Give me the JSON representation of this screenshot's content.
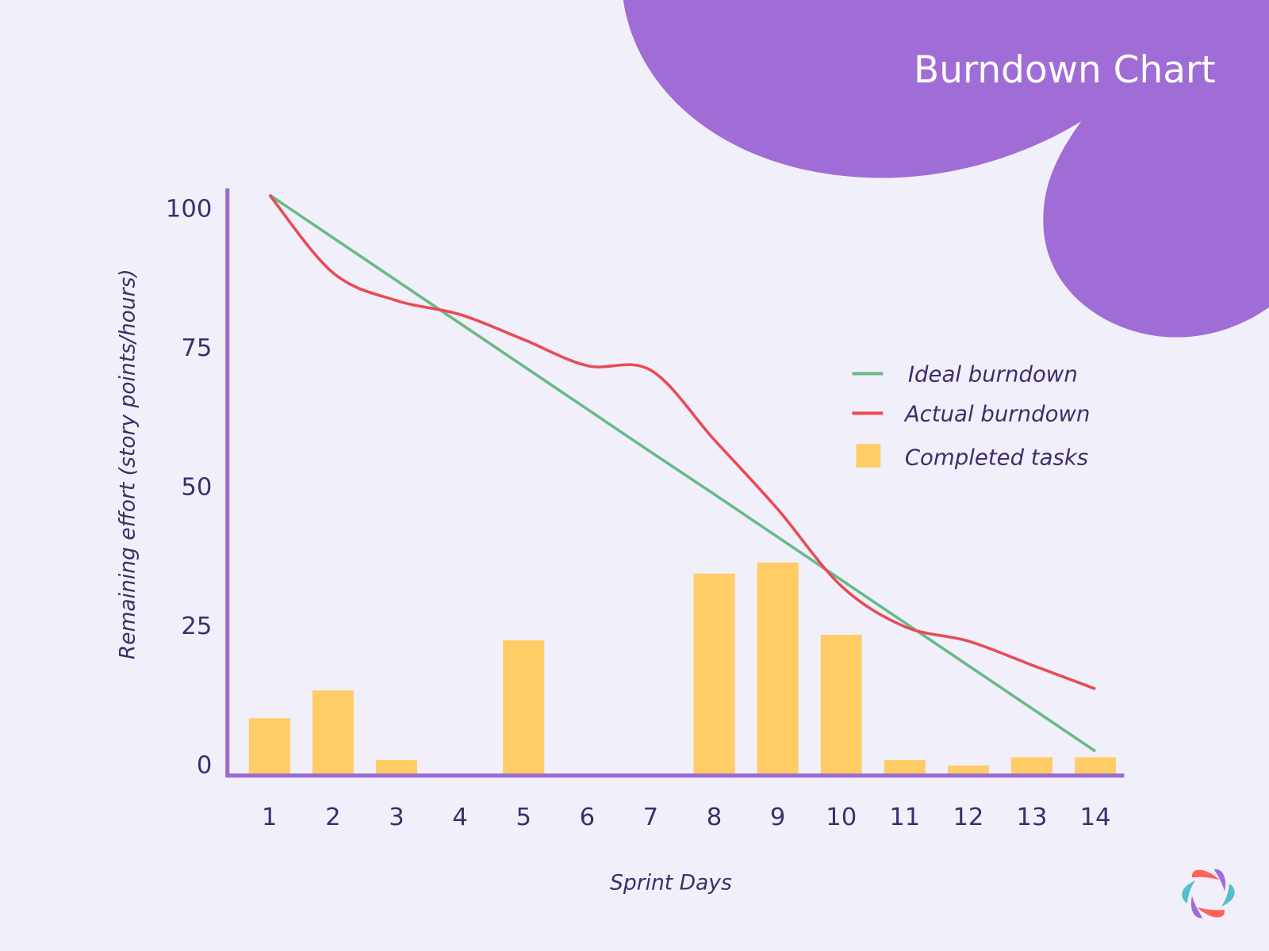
{
  "chart_data": {
    "type": "bar+line",
    "title": "Burndown Chart",
    "xlabel": "Sprint Days",
    "ylabel": "Remaining effort (story points/hours)",
    "categories": [
      1,
      2,
      3,
      4,
      5,
      6,
      7,
      8,
      9,
      10,
      11,
      12,
      13,
      14
    ],
    "yticks": [
      0,
      25,
      50,
      75,
      100
    ],
    "ylim": [
      0,
      100
    ],
    "grid": false,
    "legend_position": "right",
    "series": [
      {
        "name": "Ideal burndown",
        "type": "line",
        "color": "#66BB88",
        "values": [
          100,
          92.3,
          84.6,
          76.9,
          69.2,
          61.5,
          53.8,
          46.2,
          38.5,
          30.8,
          23.1,
          15.4,
          7.7,
          0
        ]
      },
      {
        "name": "Actual burndown",
        "type": "line",
        "smooth": true,
        "color": "#E94B55",
        "values": [
          100,
          86,
          81,
          78.5,
          74,
          69.3,
          68.5,
          56,
          43.5,
          29.7,
          22.4,
          19.8,
          15.5,
          11.2
        ]
      },
      {
        "name": "Completed tasks",
        "type": "bar",
        "color": "#FFCC66",
        "values": [
          10,
          15,
          2.5,
          0,
          24,
          0,
          0,
          36,
          38,
          25,
          2.5,
          1.5,
          3,
          3
        ]
      }
    ]
  },
  "colors": {
    "background": "#F1EFF9",
    "accent": "#A06CD5",
    "axis": "#9B6AD3",
    "text": "#3F2D6B"
  },
  "logo": {
    "icon": "petal-ring-logo"
  }
}
